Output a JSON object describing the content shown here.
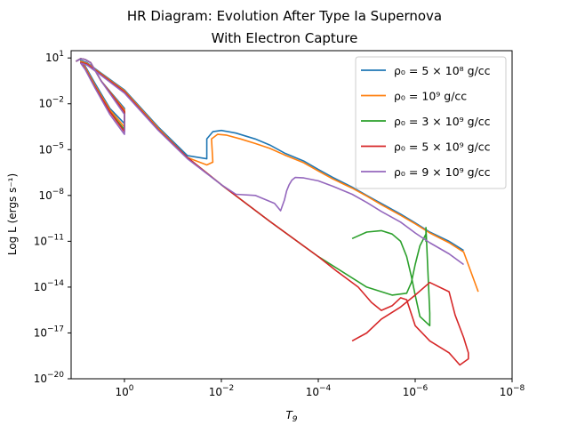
{
  "chart_data": {
    "type": "line",
    "title": "HR Diagram: Evolution After Type Ia Supernova",
    "subtitle": "With Electron Capture",
    "xlabel": "T_9",
    "ylabel": "Log L (ergs s⁻¹)",
    "x_scale": "log",
    "y_scale": "log",
    "x_inverted": true,
    "xlim": [
      12.6,
      1e-08
    ],
    "ylim": [
      1e-20,
      30
    ],
    "x_ticks": [
      {
        "value": 1,
        "base": "10",
        "exp": "0"
      },
      {
        "value": 0.01,
        "base": "10",
        "exp": "−2"
      },
      {
        "value": 0.0001,
        "base": "10",
        "exp": "−4"
      },
      {
        "value": 1e-06,
        "base": "10",
        "exp": "−6"
      },
      {
        "value": 1e-08,
        "base": "10",
        "exp": "−8"
      }
    ],
    "y_ticks": [
      {
        "value": 10,
        "base": "10",
        "exp": "1"
      },
      {
        "value": 0.01,
        "base": "10",
        "exp": "−2"
      },
      {
        "value": 1e-05,
        "base": "10",
        "exp": "−5"
      },
      {
        "value": 1e-08,
        "base": "10",
        "exp": "−8"
      },
      {
        "value": 1e-11,
        "base": "10",
        "exp": "−11"
      },
      {
        "value": 1e-14,
        "base": "10",
        "exp": "−14"
      },
      {
        "value": 1e-17,
        "base": "10",
        "exp": "−17"
      },
      {
        "value": 1e-20,
        "base": "10",
        "exp": "−20"
      }
    ],
    "grid": false,
    "legend_position": "top-right",
    "series": [
      {
        "name": "ρ₀ = 5 × 10⁸ g/cc",
        "color": "#1f77b4",
        "x": [
          10,
          8,
          6.5,
          5,
          3,
          1,
          1,
          1,
          2,
          4,
          6.5,
          8,
          6,
          3,
          1,
          0.2,
          0.05,
          0.02,
          0.02,
          0.015,
          0.01,
          0.005,
          0.002,
          0.001,
          0.0005,
          0.0002,
          0.0001,
          5e-05,
          2e-05,
          1e-05,
          5e-06,
          2e-06,
          1e-06,
          5e-07,
          2e-07,
          1e-07
        ],
        "y": [
          6,
          9,
          8,
          5,
          0.3,
          0.005,
          0.002,
          0.0005,
          0.005,
          0.2,
          3,
          7,
          5,
          1,
          0.08,
          0.0003,
          4e-06,
          2.5e-06,
          5e-05,
          0.00015,
          0.00018,
          0.00012,
          5e-05,
          2e-05,
          6e-06,
          1.8e-06,
          5e-07,
          1.5e-07,
          3.5e-08,
          1e-08,
          3e-09,
          6e-10,
          1.6e-10,
          4e-11,
          1e-11,
          2.5e-12
        ]
      },
      {
        "name": "ρ₀ = 10⁹ g/cc",
        "color": "#ff7f0e",
        "x": [
          10,
          8,
          6.5,
          5,
          3,
          1,
          1,
          1,
          2,
          4,
          6.5,
          8,
          6,
          3,
          1,
          0.2,
          0.05,
          0.02,
          0.015,
          0.016,
          0.012,
          0.008,
          0.004,
          0.002,
          0.001,
          0.0005,
          0.0002,
          0.0001,
          5e-05,
          2e-05,
          1e-05,
          5e-06,
          2e-06,
          1e-06,
          5e-07,
          2e-07,
          1e-07,
          5e-08
        ],
        "y": [
          6,
          9,
          8,
          5,
          0.3,
          0.004,
          0.0012,
          0.0003,
          0.004,
          0.15,
          2.5,
          6,
          4.5,
          0.9,
          0.07,
          0.00025,
          3e-06,
          1e-06,
          1.5e-06,
          5e-05,
          0.0001,
          9e-05,
          5e-05,
          2.5e-05,
          1.2e-05,
          4.5e-06,
          1.4e-06,
          4e-07,
          1.2e-07,
          3e-08,
          9e-09,
          2.5e-09,
          5e-10,
          1.4e-10,
          3.5e-11,
          8e-12,
          2e-12,
          5e-15
        ]
      },
      {
        "name": "ρ₀ = 3 × 10⁹ g/cc",
        "color": "#2ca02c",
        "x": [
          10,
          8,
          6.5,
          5,
          3,
          1,
          1,
          1,
          2,
          4,
          6.5,
          8,
          6,
          3,
          1,
          0.2,
          0.05,
          0.01,
          0.001,
          0.0001,
          1e-05,
          3e-06,
          1.5e-06,
          1.2e-06,
          1e-06,
          8e-07,
          6e-07,
          6e-07,
          6e-07,
          5e-07,
          5e-07,
          5e-07,
          8e-07,
          1e-06,
          1.2e-06,
          1.5e-06,
          2e-06,
          3e-06,
          5e-06,
          1e-05,
          2e-05
        ],
        "y": [
          6,
          9,
          8,
          5,
          0.3,
          0.003,
          0.0008,
          0.0002,
          0.003,
          0.12,
          2,
          5,
          4,
          0.8,
          0.06,
          0.0002,
          3e-06,
          5e-08,
          2e-10,
          1e-12,
          1e-14,
          3e-15,
          4e-15,
          2e-14,
          3e-13,
          5e-12,
          3e-11,
          1e-11,
          8e-11,
          2e-16,
          5e-17,
          3e-17,
          1.2e-16,
          3e-15,
          5e-14,
          1e-12,
          1e-11,
          3e-11,
          5e-11,
          4e-11,
          1.5e-11
        ]
      },
      {
        "name": "ρ₀ = 5 × 10⁹ g/cc",
        "color": "#d62728",
        "x": [
          10,
          8,
          6.5,
          5,
          3,
          1,
          1,
          1,
          2,
          4,
          6.5,
          8,
          6,
          3,
          1,
          0.2,
          0.05,
          0.01,
          0.001,
          0.0001,
          4e-05,
          1.5e-05,
          8e-06,
          5e-06,
          3e-06,
          2e-06,
          1.5e-06,
          1e-06,
          5e-07,
          2e-07,
          1.2e-07,
          8e-08,
          8e-08,
          1e-07,
          1.5e-07,
          2e-07,
          5e-07,
          1e-06,
          2e-06,
          5e-06,
          1e-05,
          2e-05
        ],
        "y": [
          6,
          9,
          8,
          5,
          0.3,
          0.003,
          0.0007,
          0.00015,
          0.003,
          0.12,
          2,
          5,
          4,
          0.8,
          0.06,
          0.0002,
          3e-06,
          5e-08,
          2e-10,
          1e-12,
          1e-13,
          1e-14,
          1e-15,
          3e-16,
          6e-16,
          2e-15,
          1.5e-15,
          3e-17,
          3e-18,
          5e-19,
          8e-20,
          2e-19,
          5e-19,
          5e-18,
          1.5e-16,
          5e-15,
          2e-14,
          3e-15,
          5e-16,
          8e-17,
          1e-17,
          3e-18
        ]
      },
      {
        "name": "ρ₀ = 9 × 10⁹ g/cc",
        "color": "#9467bd",
        "x": [
          10,
          8,
          6.5,
          5,
          3,
          1,
          1,
          1,
          2,
          4,
          6.5,
          8,
          6,
          3,
          1,
          0.2,
          0.05,
          0.01,
          0.005,
          0.002,
          0.0008,
          0.0006,
          0.0005,
          0.00045,
          0.0004,
          0.00035,
          0.0003,
          0.0002,
          0.0001,
          5e-05,
          2e-05,
          1e-05,
          5e-06,
          2e-06,
          1e-06,
          5e-07,
          2e-07,
          1e-07
        ],
        "y": [
          6,
          9,
          8,
          5,
          0.3,
          0.002,
          0.0005,
          0.0001,
          0.002,
          0.1,
          1.8,
          4.5,
          3.5,
          0.7,
          0.05,
          0.00018,
          2.5e-06,
          5e-08,
          1.2e-08,
          1e-08,
          3e-09,
          1e-09,
          5e-09,
          2e-08,
          5e-08,
          1e-07,
          1.5e-07,
          1.4e-07,
          9e-08,
          4e-08,
          1.2e-08,
          3.5e-09,
          9e-10,
          1.8e-10,
          3.5e-11,
          8e-12,
          1.5e-12,
          3e-13
        ]
      }
    ]
  }
}
